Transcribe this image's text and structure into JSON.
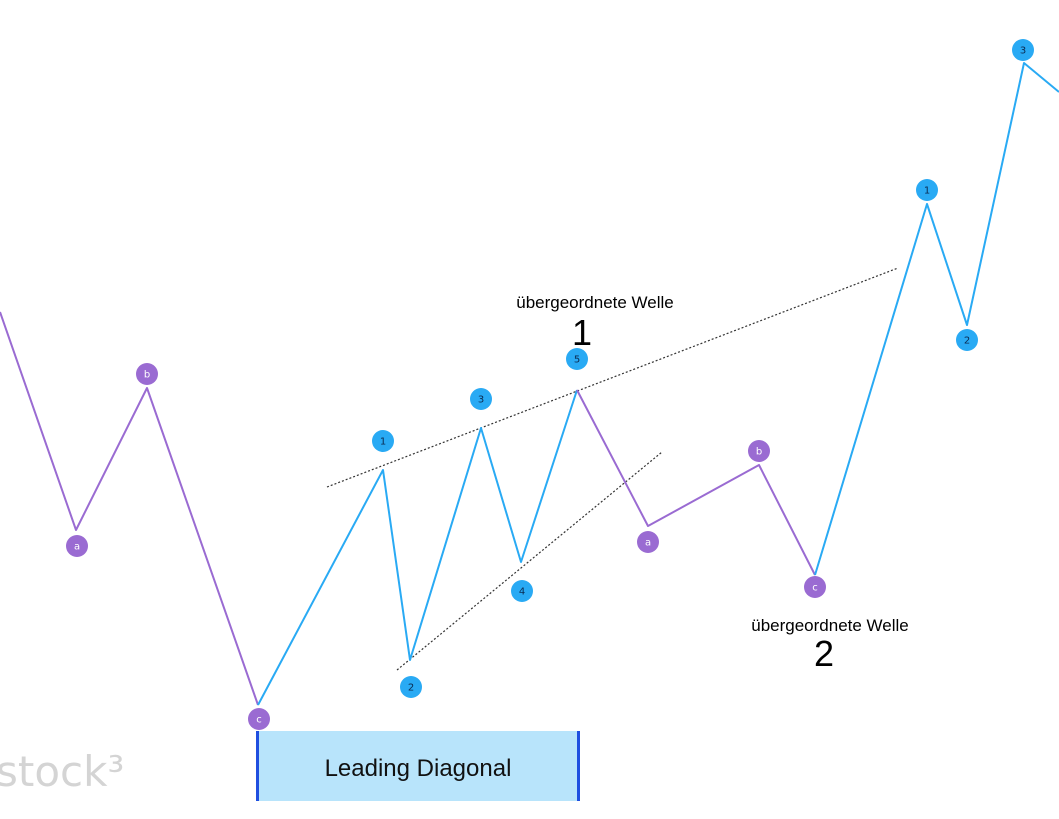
{
  "colors": {
    "impulse": "#29aaf4",
    "correction": "#9a6bd2",
    "marker_text_impulse": "#0a2a50",
    "marker_text_correction": "#ffffff",
    "trendline": "#333333",
    "box_fill": "#b8e4fb",
    "box_edge": "#1f4fe0"
  },
  "labels": {
    "wave_1_caption": "übergeordnete Welle",
    "wave_1_number": "1",
    "wave_2_caption": "übergeordnete Welle",
    "wave_2_number": "2",
    "pattern_box": "Leading Diagonal",
    "logo": "stock³"
  },
  "markers": [
    {
      "id": "a",
      "text": "a",
      "wave": "correction"
    },
    {
      "id": "b",
      "text": "b",
      "wave": "correction"
    },
    {
      "id": "c",
      "text": "c",
      "wave": "correction"
    },
    {
      "id": "1",
      "text": "1",
      "wave": "impulse"
    },
    {
      "id": "2",
      "text": "2",
      "wave": "impulse"
    },
    {
      "id": "3",
      "text": "3",
      "wave": "impulse"
    },
    {
      "id": "4",
      "text": "4",
      "wave": "impulse"
    },
    {
      "id": "5",
      "text": "5",
      "wave": "impulse"
    },
    {
      "id": "a2",
      "text": "a",
      "wave": "correction"
    },
    {
      "id": "b2",
      "text": "b",
      "wave": "correction"
    },
    {
      "id": "c2",
      "text": "c",
      "wave": "correction"
    },
    {
      "id": "h1",
      "text": "1",
      "wave": "impulse"
    },
    {
      "id": "h2",
      "text": "2",
      "wave": "impulse"
    },
    {
      "id": "h3",
      "text": "3",
      "wave": "impulse"
    }
  ]
}
